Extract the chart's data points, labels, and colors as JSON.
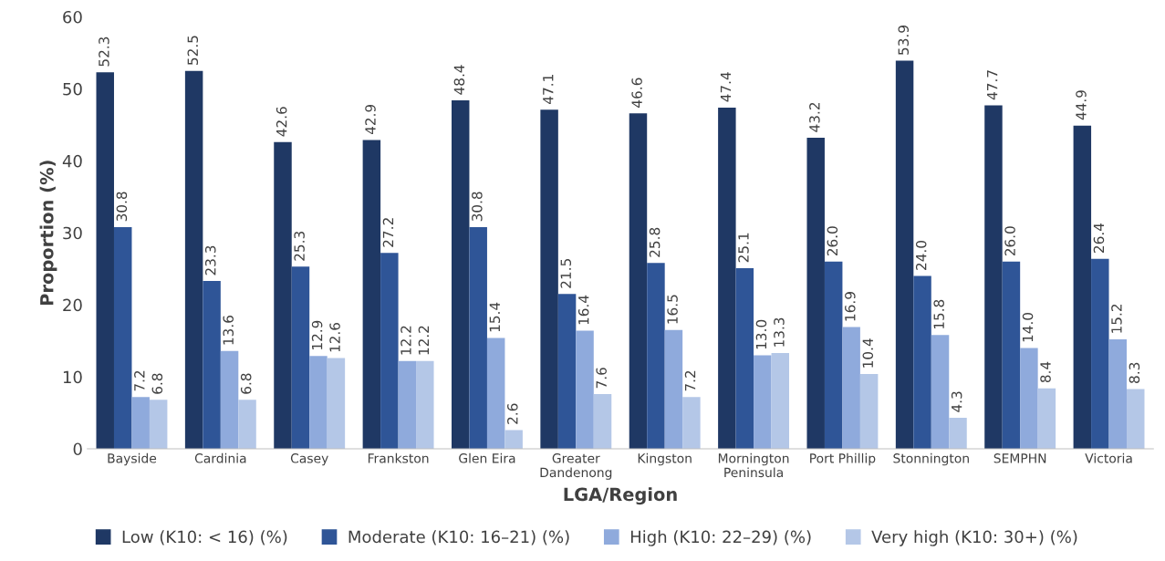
{
  "chart_data": {
    "type": "bar",
    "xlabel": "LGA/Region",
    "ylabel": "Proportion (%)",
    "categories": [
      "Bayside",
      "Cardinia",
      "Casey",
      "Frankston",
      "Glen Eira",
      "Greater\nDandenong",
      "Kingston",
      "Mornington\nPeninsula",
      "Port Phillip",
      "Stonnington",
      "SEMPHN",
      "Victoria"
    ],
    "series": [
      {
        "name": "Low (K10: < 16) (%)",
        "color": "#1f3864",
        "values": [
          52.3,
          52.5,
          42.6,
          42.9,
          48.4,
          47.1,
          46.6,
          47.4,
          43.2,
          53.9,
          47.7,
          44.9
        ],
        "value_labels": [
          "52.3",
          "52.5",
          "42.6",
          "42.9",
          "48.4",
          "47.1",
          "46.6",
          "47.4",
          "43.2",
          "53.9",
          "47.7",
          "44.9"
        ]
      },
      {
        "name": "Moderate (K10: 16–21) (%)",
        "color": "#2f5597",
        "values": [
          30.8,
          23.3,
          25.3,
          27.2,
          30.8,
          21.5,
          25.8,
          25.1,
          26.0,
          24.0,
          26.0,
          26.4
        ],
        "value_labels": [
          "30.8",
          "23.3",
          "25.3",
          "27.2",
          "30.8",
          "21.5",
          "25.8",
          "25.1",
          "26.0",
          "24.0",
          "26.0",
          "26.4"
        ]
      },
      {
        "name": "High (K10: 22–29) (%)",
        "color": "#8faadc",
        "values": [
          7.2,
          13.6,
          12.9,
          12.2,
          15.4,
          16.4,
          16.5,
          13.0,
          16.9,
          15.8,
          14.0,
          15.2
        ],
        "value_labels": [
          "7.2",
          "13.6",
          "12.9",
          "12.2",
          "15.4",
          "16.4",
          "16.5",
          "13.0",
          "16.9",
          "15.8",
          "14.0",
          "15.2"
        ]
      },
      {
        "name": "Very high (K10: 30+) (%)",
        "color": "#b4c7e7",
        "values": [
          6.8,
          6.8,
          12.6,
          12.2,
          2.6,
          7.6,
          7.2,
          13.3,
          10.4,
          4.3,
          8.4,
          8.3
        ],
        "value_labels": [
          "6.8",
          "6.8",
          "12.6",
          "12.2",
          "2.6",
          "7.6",
          "7.2",
          "13.3",
          "10.4",
          "4.3",
          "8.4",
          "8.3"
        ]
      }
    ],
    "ylim": [
      0,
      60
    ],
    "yticks": [
      0,
      10,
      20,
      30,
      40,
      50,
      60
    ],
    "grid": false,
    "legend": "bottom"
  }
}
